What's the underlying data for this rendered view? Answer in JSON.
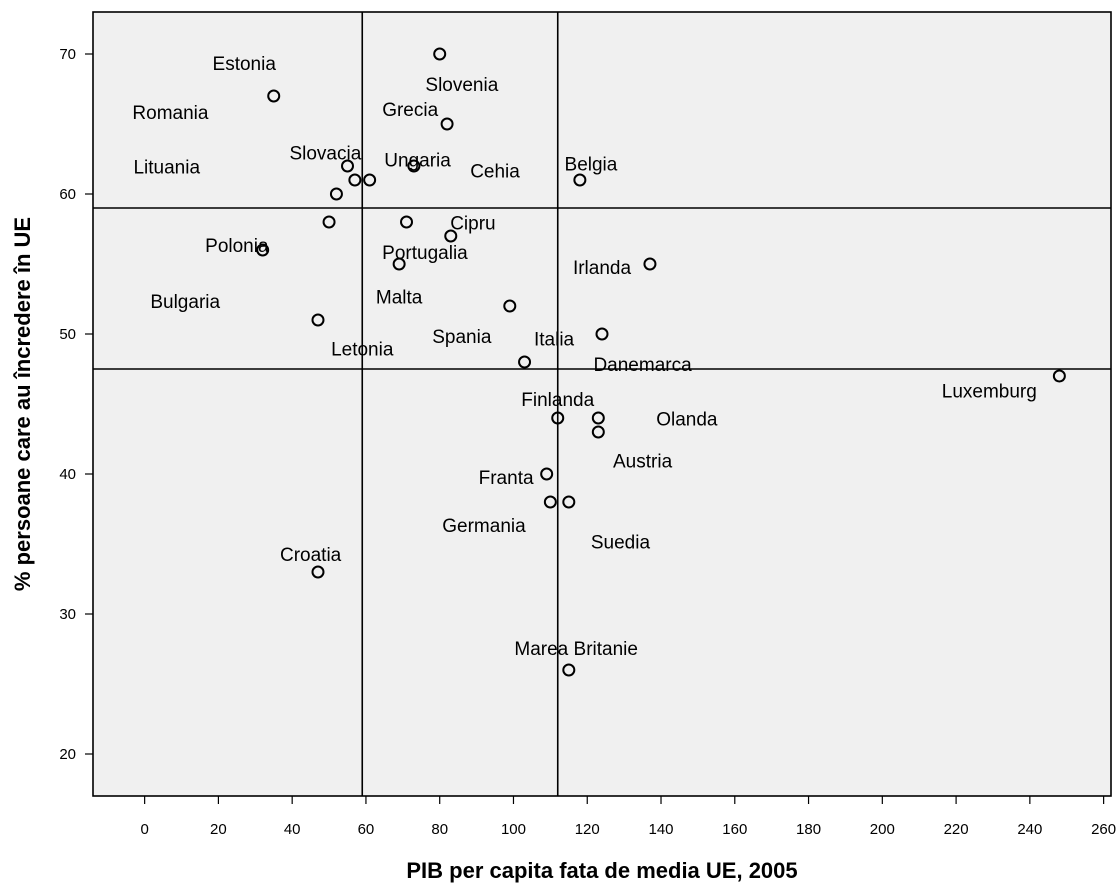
{
  "chart_data": {
    "type": "scatter",
    "title": "",
    "xlabel": "PIB per capita fata de media UE, 2005",
    "ylabel": "% persoane care au încredere în UE",
    "xlim": [
      -14,
      262
    ],
    "ylim": [
      17,
      73
    ],
    "xticks": [
      0,
      20,
      40,
      60,
      80,
      100,
      120,
      140,
      160,
      180,
      200,
      220,
      240,
      260
    ],
    "yticks": [
      20,
      30,
      40,
      50,
      60,
      70
    ],
    "grid": false,
    "marker": "open-circle",
    "plot_background": "#f0f0f0",
    "reference_lines": {
      "x": [
        59,
        112
      ],
      "y": [
        59,
        47.5
      ]
    },
    "labels": [
      {
        "text": "Estonia",
        "x": 27,
        "y": 69.3
      },
      {
        "text": "Slovenia",
        "x": 86,
        "y": 67.8
      },
      {
        "text": "Romania",
        "x": 7,
        "y": 65.8
      },
      {
        "text": "Grecia",
        "x": 72,
        "y": 66
      },
      {
        "text": "Slovacia",
        "x": 49,
        "y": 62.9
      },
      {
        "text": "Ungaria",
        "x": 74,
        "y": 62.4
      },
      {
        "text": "Lituania",
        "x": 6,
        "y": 61.9
      },
      {
        "text": "Cehia",
        "x": 95,
        "y": 61.6
      },
      {
        "text": "Belgia",
        "x": 121,
        "y": 62.1
      },
      {
        "text": "Cipru",
        "x": 89,
        "y": 57.9
      },
      {
        "text": "Polonia",
        "x": 25,
        "y": 56.3
      },
      {
        "text": "Portugalia",
        "x": 76,
        "y": 55.8
      },
      {
        "text": "Irlanda",
        "x": 124,
        "y": 54.7
      },
      {
        "text": "Bulgaria",
        "x": 11,
        "y": 52.3
      },
      {
        "text": "Malta",
        "x": 69,
        "y": 52.6
      },
      {
        "text": "Spania",
        "x": 86,
        "y": 49.8
      },
      {
        "text": "Italia",
        "x": 111,
        "y": 49.6
      },
      {
        "text": "Letonia",
        "x": 59,
        "y": 48.9
      },
      {
        "text": "Danemarca",
        "x": 135,
        "y": 47.8
      },
      {
        "text": "Luxemburg",
        "x": 229,
        "y": 45.9
      },
      {
        "text": "Finlanda",
        "x": 112,
        "y": 45.3
      },
      {
        "text": "Olanda",
        "x": 147,
        "y": 43.9
      },
      {
        "text": "Austria",
        "x": 135,
        "y": 40.9
      },
      {
        "text": "Franta",
        "x": 98,
        "y": 39.7
      },
      {
        "text": "Germania",
        "x": 92,
        "y": 36.3
      },
      {
        "text": "Suedia",
        "x": 129,
        "y": 35.1
      },
      {
        "text": "Croatia",
        "x": 45,
        "y": 34.2
      },
      {
        "text": "Marea Britanie",
        "x": 117,
        "y": 27.5
      }
    ],
    "points": [
      {
        "x": 80,
        "y": 70
      },
      {
        "x": 35,
        "y": 67
      },
      {
        "x": 82,
        "y": 65
      },
      {
        "x": 55,
        "y": 62
      },
      {
        "x": 73,
        "y": 62
      },
      {
        "x": 57,
        "y": 61
      },
      {
        "x": 61,
        "y": 61
      },
      {
        "x": 118,
        "y": 61
      },
      {
        "x": 52,
        "y": 60
      },
      {
        "x": 50,
        "y": 58
      },
      {
        "x": 71,
        "y": 58
      },
      {
        "x": 83,
        "y": 57
      },
      {
        "x": 32,
        "y": 56
      },
      {
        "x": 69,
        "y": 55
      },
      {
        "x": 137,
        "y": 55
      },
      {
        "x": 99,
        "y": 52
      },
      {
        "x": 47,
        "y": 51
      },
      {
        "x": 124,
        "y": 50
      },
      {
        "x": 103,
        "y": 48
      },
      {
        "x": 248,
        "y": 47
      },
      {
        "x": 112,
        "y": 44
      },
      {
        "x": 123,
        "y": 44
      },
      {
        "x": 123,
        "y": 43
      },
      {
        "x": 109,
        "y": 40
      },
      {
        "x": 110,
        "y": 38
      },
      {
        "x": 115,
        "y": 38
      },
      {
        "x": 47,
        "y": 33
      },
      {
        "x": 115,
        "y": 26
      }
    ]
  }
}
